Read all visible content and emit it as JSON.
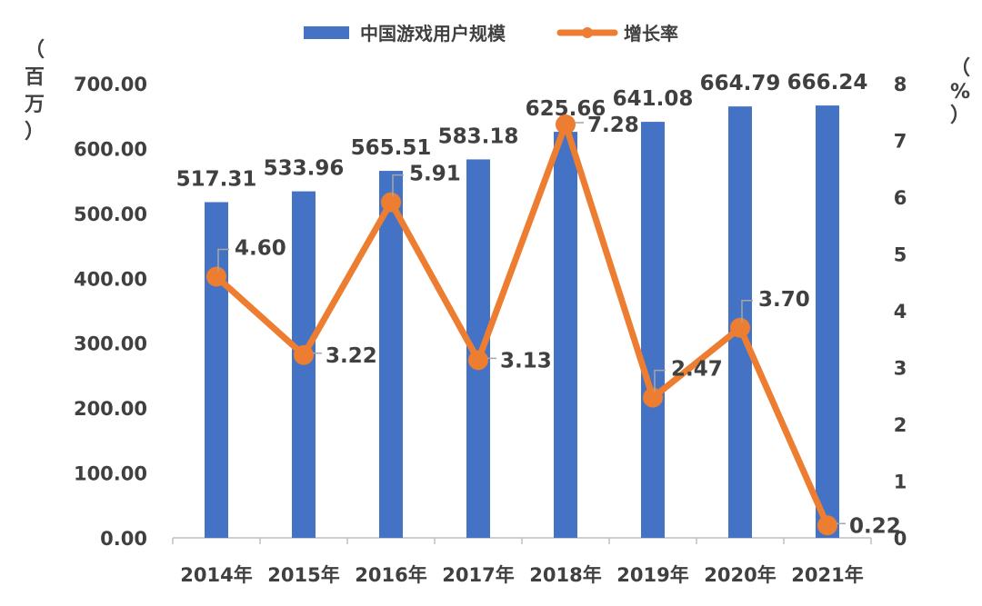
{
  "chart_data": {
    "type": "bar",
    "categories": [
      "2014年",
      "2015年",
      "2016年",
      "2017年",
      "2018年",
      "2019年",
      "2020年",
      "2021年"
    ],
    "series": [
      {
        "name": "中国游戏用户规模",
        "type": "bar",
        "axis": "left",
        "values": [
          517.31,
          533.96,
          565.51,
          583.18,
          625.66,
          641.08,
          664.79,
          666.24
        ],
        "labels": [
          "517.31",
          "533.96",
          "565.51",
          "583.18",
          "625.66",
          "641.08",
          "664.79",
          "666.24"
        ],
        "color": "#4472C4"
      },
      {
        "name": "增长率",
        "type": "line",
        "axis": "right",
        "values": [
          4.6,
          3.22,
          5.91,
          3.13,
          7.28,
          2.47,
          3.7,
          0.22
        ],
        "labels": [
          "4.60",
          "3.22",
          "5.91",
          "3.13",
          "7.28",
          "2.47",
          "3.70",
          "0.22"
        ],
        "color": "#ED7D31"
      }
    ],
    "y_left": {
      "label_chars": [
        "（",
        "百",
        "万",
        "）"
      ],
      "ylim": [
        0,
        700
      ],
      "ticks": [
        "0.00",
        "100.00",
        "200.00",
        "300.00",
        "400.00",
        "500.00",
        "600.00",
        "700.00"
      ]
    },
    "y_right": {
      "label_chars": [
        "（",
        "%",
        "）"
      ],
      "ylim": [
        0,
        8
      ],
      "ticks": [
        "0",
        "1",
        "2",
        "3",
        "4",
        "5",
        "6",
        "7",
        "8"
      ]
    },
    "legend_position": "top-center",
    "grid": false
  }
}
